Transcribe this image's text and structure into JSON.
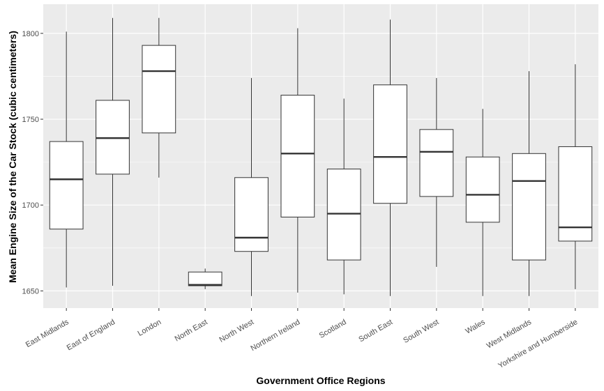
{
  "chart_data": {
    "type": "boxplot",
    "xlabel": "Government Office Regions",
    "ylabel": "Mean Engine Size of the Car Stock (cubic centimeters)",
    "ylim": [
      1640,
      1817
    ],
    "yticks": [
      1650,
      1700,
      1750,
      1800
    ],
    "grid": true,
    "background": "#ebebeb",
    "grid_color": "#ffffff",
    "box_fill": "#ffffff",
    "box_stroke": "#333333",
    "categories": [
      "East Midlands",
      "East of England",
      "London",
      "North East",
      "North West",
      "Northern Ireland",
      "Scotland",
      "South East",
      "South West",
      "Wales",
      "West Midlands",
      "Yorkshire and Humberside"
    ],
    "boxes": [
      {
        "min": 1652,
        "q1": 1686,
        "median": 1715,
        "q3": 1737,
        "max": 1801
      },
      {
        "min": 1653,
        "q1": 1718,
        "median": 1739,
        "q3": 1761,
        "max": 1809
      },
      {
        "min": 1716,
        "q1": 1742,
        "median": 1778,
        "q3": 1793,
        "max": 1809
      },
      {
        "min": 1651,
        "q1": 1653,
        "median": 1653.5,
        "q3": 1661,
        "max": 1663
      },
      {
        "min": 1647,
        "q1": 1673,
        "median": 1681,
        "q3": 1716,
        "max": 1774
      },
      {
        "min": 1649,
        "q1": 1693,
        "median": 1730,
        "q3": 1764,
        "max": 1803
      },
      {
        "min": 1648,
        "q1": 1668,
        "median": 1695,
        "q3": 1721,
        "max": 1762
      },
      {
        "min": 1647,
        "q1": 1701,
        "median": 1728,
        "q3": 1770,
        "max": 1808
      },
      {
        "min": 1664,
        "q1": 1705,
        "median": 1731,
        "q3": 1744,
        "max": 1774
      },
      {
        "min": 1647,
        "q1": 1690,
        "median": 1706,
        "q3": 1728,
        "max": 1756
      },
      {
        "min": 1647,
        "q1": 1668,
        "median": 1714,
        "q3": 1730,
        "max": 1778
      },
      {
        "min": 1651,
        "q1": 1679,
        "median": 1687,
        "q3": 1734,
        "max": 1782
      }
    ]
  }
}
